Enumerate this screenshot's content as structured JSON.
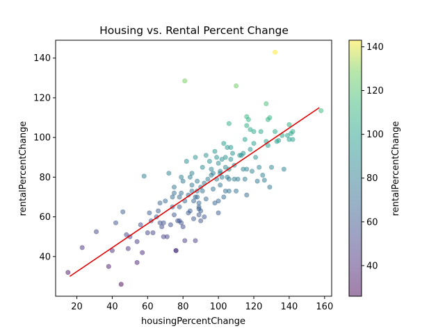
{
  "chart_data": {
    "type": "scatter",
    "title": "Housing vs. Rental Percent Change",
    "xlabel": "housingPercentChange",
    "ylabel": "rentalPercentChange",
    "colorbar_label": "rentalPercentChange",
    "xlim": [
      8,
      164
    ],
    "ylim": [
      20,
      149
    ],
    "x_ticks": [
      20,
      40,
      60,
      80,
      100,
      120,
      140,
      160
    ],
    "y_ticks": [
      40,
      60,
      80,
      100,
      120,
      140
    ],
    "colorbar_range": [
      26,
      143
    ],
    "colorbar_ticks": [
      40,
      60,
      80,
      100,
      120,
      140
    ],
    "colormap": "viridis",
    "point_alpha": 0.5,
    "trendline": {
      "x": [
        16,
        157
      ],
      "y": [
        30,
        115
      ],
      "color": "#e00000"
    },
    "points": [
      [
        15,
        32
      ],
      [
        23,
        44.5
      ],
      [
        31,
        52.5
      ],
      [
        38,
        35
      ],
      [
        40,
        43
      ],
      [
        42,
        57
      ],
      [
        45,
        26
      ],
      [
        46,
        62.5
      ],
      [
        48,
        51
      ],
      [
        49,
        44
      ],
      [
        50,
        50
      ],
      [
        54,
        37
      ],
      [
        54,
        47.5
      ],
      [
        56,
        56
      ],
      [
        57,
        42
      ],
      [
        58,
        80.5
      ],
      [
        60,
        52
      ],
      [
        61,
        62
      ],
      [
        62,
        58
      ],
      [
        63,
        52
      ],
      [
        65,
        60
      ],
      [
        66,
        63
      ],
      [
        67,
        57
      ],
      [
        67,
        67
      ],
      [
        68,
        55
      ],
      [
        69,
        57
      ],
      [
        69,
        50
      ],
      [
        70,
        68
      ],
      [
        71,
        50
      ],
      [
        72,
        82
      ],
      [
        73,
        56
      ],
      [
        74,
        65
      ],
      [
        74,
        70
      ],
      [
        75,
        72
      ],
      [
        75,
        75
      ],
      [
        75,
        61
      ],
      [
        76,
        43
      ],
      [
        76,
        43
      ],
      [
        77,
        58
      ],
      [
        78,
        65
      ],
      [
        78,
        70
      ],
      [
        78,
        58
      ],
      [
        79,
        80
      ],
      [
        79,
        72
      ],
      [
        79,
        57
      ],
      [
        80,
        78
      ],
      [
        80,
        55
      ],
      [
        81,
        128.5
      ],
      [
        81,
        68
      ],
      [
        81,
        48
      ],
      [
        82,
        88
      ],
      [
        83,
        71
      ],
      [
        83,
        62
      ],
      [
        84,
        63
      ],
      [
        84,
        80
      ],
      [
        85,
        82
      ],
      [
        85,
        76
      ],
      [
        85,
        73
      ],
      [
        86,
        68
      ],
      [
        86,
        59
      ],
      [
        87,
        90
      ],
      [
        87,
        48
      ],
      [
        87,
        70
      ],
      [
        88,
        78
      ],
      [
        88,
        73
      ],
      [
        88,
        70
      ],
      [
        89,
        67
      ],
      [
        89,
        65
      ],
      [
        89,
        61
      ],
      [
        89,
        64
      ],
      [
        90,
        63
      ],
      [
        90,
        75
      ],
      [
        90,
        58
      ],
      [
        91,
        73
      ],
      [
        91,
        85
      ],
      [
        92,
        77
      ],
      [
        92,
        60
      ],
      [
        93,
        91
      ],
      [
        93,
        69
      ],
      [
        94,
        79
      ],
      [
        95,
        88
      ],
      [
        96,
        81
      ],
      [
        96,
        84
      ],
      [
        97,
        74
      ],
      [
        97,
        82
      ],
      [
        98,
        93
      ],
      [
        98,
        67
      ],
      [
        99,
        90
      ],
      [
        99,
        79
      ],
      [
        100,
        87
      ],
      [
        100,
        68
      ],
      [
        100,
        62
      ],
      [
        101,
        82
      ],
      [
        101,
        76
      ],
      [
        101,
        83
      ],
      [
        102,
        80
      ],
      [
        102,
        89
      ],
      [
        103,
        97
      ],
      [
        103,
        70
      ],
      [
        104,
        85
      ],
      [
        104,
        90
      ],
      [
        104,
        73
      ],
      [
        105,
        80
      ],
      [
        105,
        95
      ],
      [
        106,
        107
      ],
      [
        106,
        84
      ],
      [
        106,
        79
      ],
      [
        106,
        73
      ],
      [
        107,
        95
      ],
      [
        107,
        89
      ],
      [
        108,
        92
      ],
      [
        109,
        79
      ],
      [
        109,
        86
      ],
      [
        110,
        126
      ],
      [
        110,
        73
      ],
      [
        111,
        79
      ],
      [
        112,
        91
      ],
      [
        113,
        91
      ],
      [
        114,
        84
      ],
      [
        114,
        92
      ],
      [
        115,
        79
      ],
      [
        115,
        99
      ],
      [
        116,
        106
      ],
      [
        116,
        84
      ],
      [
        116,
        110.5
      ],
      [
        116,
        71
      ],
      [
        117,
        109
      ],
      [
        118,
        104
      ],
      [
        118,
        94
      ],
      [
        119,
        83
      ],
      [
        120,
        97
      ],
      [
        120,
        103
      ],
      [
        121,
        90
      ],
      [
        122,
        78
      ],
      [
        123,
        85
      ],
      [
        124,
        103
      ],
      [
        125,
        81
      ],
      [
        126,
        78.5
      ],
      [
        127,
        98
      ],
      [
        127,
        117
      ],
      [
        128,
        109
      ],
      [
        128,
        96
      ],
      [
        129,
        110
      ],
      [
        129,
        75
      ],
      [
        130,
        85
      ],
      [
        132,
        103
      ],
      [
        132,
        143
      ],
      [
        133,
        98
      ],
      [
        134,
        98.5
      ],
      [
        136,
        101
      ],
      [
        137,
        84
      ],
      [
        139,
        101
      ],
      [
        140,
        106.5
      ],
      [
        140,
        99
      ],
      [
        141,
        102
      ],
      [
        142,
        103
      ],
      [
        142,
        99
      ],
      [
        158,
        113.5
      ]
    ]
  }
}
